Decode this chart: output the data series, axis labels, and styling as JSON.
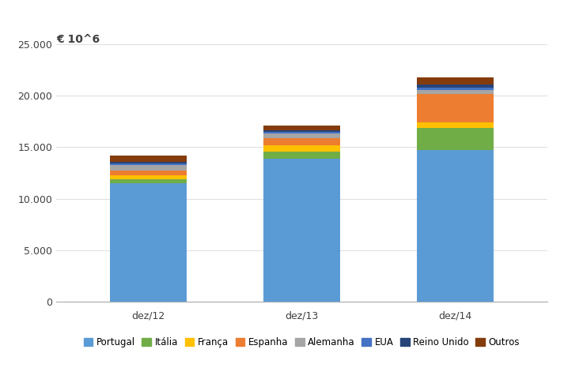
{
  "categories": [
    "dez/12",
    "dez/13",
    "dez/14"
  ],
  "series": {
    "Portugal": [
      11500,
      13900,
      14700
    ],
    "Itália": [
      400,
      700,
      2200
    ],
    "França": [
      350,
      550,
      500
    ],
    "Espanha": [
      500,
      750,
      2800
    ],
    "Alemanha": [
      500,
      450,
      350
    ],
    "EUA": [
      150,
      150,
      220
    ],
    "Reino Unido": [
      150,
      150,
      280
    ],
    "Outros": [
      650,
      450,
      750
    ]
  },
  "colors": {
    "Portugal": "#5B9BD5",
    "Itália": "#70AD47",
    "França": "#FFC000",
    "Espanha": "#ED7D31",
    "Alemanha": "#A5A5A5",
    "EUA": "#4472C4",
    "Reino Unido": "#264478",
    "Outros": "#843C0C"
  },
  "ylabel": "€ 10^6",
  "ylim": [
    0,
    25000
  ],
  "yticks": [
    0,
    5000,
    10000,
    15000,
    20000,
    25000
  ],
  "bar_width": 0.5,
  "background_color": "#FFFFFF",
  "ylabel_fontsize": 10,
  "tick_fontsize": 9,
  "legend_fontsize": 8.5
}
